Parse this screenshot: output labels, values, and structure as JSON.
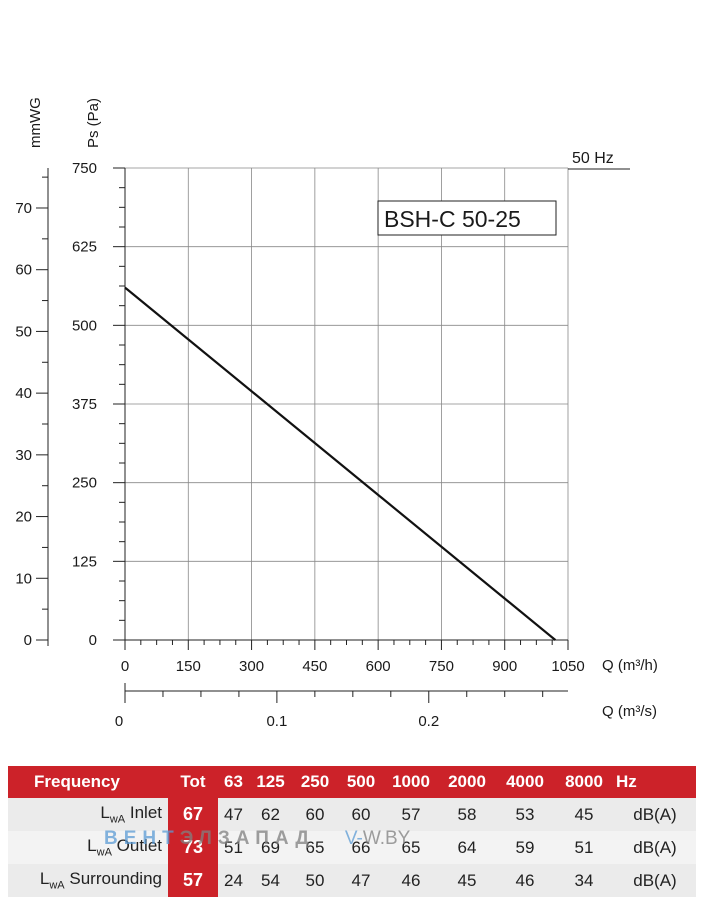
{
  "chart_data": {
    "type": "line",
    "title": "",
    "model_label": "BSH-C 50-25",
    "frequency_label": "50 Hz",
    "xlabel": "Q (m³/h)",
    "xlabel_secondary": "Q (m³/s)",
    "ylabel": "Ps (Pa)",
    "ylabel_secondary": "mmWG",
    "xlim": [
      0,
      1050
    ],
    "ylim": [
      0,
      750
    ],
    "x_ticks": [
      0,
      150,
      300,
      450,
      600,
      750,
      900,
      1050
    ],
    "y_ticks": [
      0,
      125,
      250,
      375,
      500,
      625,
      750
    ],
    "x2_ticks": [
      0,
      0.1,
      0.2
    ],
    "x2_tick_labels": [
      "0",
      "0.1",
      "0.2"
    ],
    "y2_ticks": [
      0,
      10,
      20,
      30,
      40,
      50,
      60,
      70
    ],
    "grid": true,
    "series": [
      {
        "x": [
          0,
          1020
        ],
        "y": [
          560,
          0
        ]
      }
    ]
  },
  "table": {
    "header_label": "Frequency",
    "tot_label": "Tot",
    "bands": [
      "63",
      "125",
      "250",
      "500",
      "1000",
      "2000",
      "4000",
      "8000"
    ],
    "unit_hz": "Hz",
    "unit_db": "dB(A)",
    "lwa_prefix": "L",
    "lwa_sub": "wA",
    "rows": [
      {
        "label": "Inlet",
        "tot": "67",
        "values": [
          "47",
          "62",
          "60",
          "60",
          "57",
          "58",
          "53",
          "45"
        ]
      },
      {
        "label": "Outlet",
        "tot": "73",
        "values": [
          "51",
          "69",
          "65",
          "66",
          "65",
          "64",
          "59",
          "51"
        ]
      },
      {
        "label": "Surrounding",
        "tot": "57",
        "values": [
          "24",
          "54",
          "50",
          "47",
          "46",
          "45",
          "46",
          "34"
        ]
      }
    ]
  },
  "watermark": {
    "part_a": "ВЕНТ",
    "part_b": "ЭЛЗАПАД",
    "part_c": "V-",
    "part_d": "W.BY"
  }
}
